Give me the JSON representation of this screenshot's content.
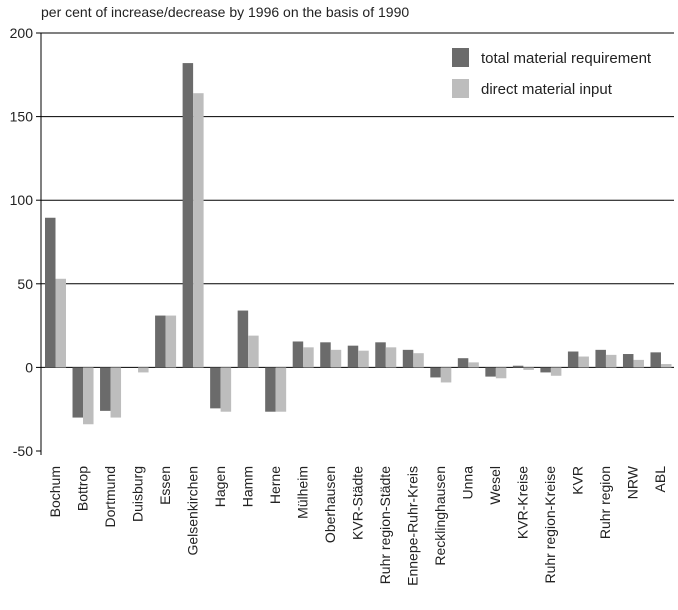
{
  "chart_data": {
    "type": "bar",
    "title": "per cent of increase/decrease by 1996 on the basis of 1990",
    "xlabel": "",
    "ylabel": "",
    "ylim": [
      -50,
      200
    ],
    "yticks": [
      200,
      150,
      100,
      50,
      0,
      -50
    ],
    "grid": true,
    "legend_position": "top-right",
    "categories": [
      "Bochum",
      "Bottrop",
      "Dortmund",
      "Duisburg",
      "Essen",
      "Gelsenkirchen",
      "Hagen",
      "Hamm",
      "Herne",
      "Mülheim",
      "Oberhausen",
      "KVR-Städte",
      "Ruhr region-Städte",
      "Ennepe-Ruhr-Kreis",
      "Recklinghausen",
      "Unna",
      "Wesel",
      "KVR-Kreise",
      "Ruhr region-Kreise",
      "KVR",
      "Ruhr region",
      "NRW",
      "ABL"
    ],
    "series": [
      {
        "name": "total material requirement",
        "color": "#6b6b6b",
        "values": [
          89.5,
          -30,
          -26,
          0,
          31,
          182,
          -24.5,
          34,
          -26.5,
          15.5,
          15,
          13,
          15,
          10.5,
          -6,
          5.5,
          -5.5,
          1,
          -3,
          9.5,
          10.5,
          8,
          9
        ]
      },
      {
        "name": "direct material input",
        "color": "#bdbdbd",
        "values": [
          53,
          -34,
          -30,
          -3,
          31,
          164,
          -26.5,
          19,
          -26.5,
          12,
          10.5,
          10,
          12,
          8.5,
          -9,
          3,
          -6.5,
          -1.5,
          -5,
          6.5,
          7.5,
          4.5,
          2
        ]
      }
    ]
  }
}
